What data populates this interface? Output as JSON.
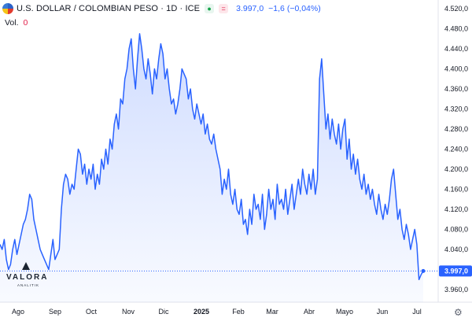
{
  "header": {
    "title": "U.S. DOLLAR / COLOMBIAN PESO · 1D · ICE",
    "last_price": "3.997,0",
    "change": "−1,6 (−0,04%)"
  },
  "volume": {
    "label": "Vol.",
    "value": "0"
  },
  "logo": {
    "name": "VALORA",
    "sub": "ANALITIK"
  },
  "price_axis": {
    "ticks": [
      "4.520,0",
      "4.480,0",
      "4.440,0",
      "4.400,0",
      "4.360,0",
      "4.320,0",
      "4.280,0",
      "4.240,0",
      "4.200,0",
      "4.160,0",
      "4.120,0",
      "4.080,0",
      "4.040,0",
      "3.960,0"
    ],
    "current_label": "3.997,0"
  },
  "time_axis": {
    "ticks": [
      "Ago",
      "Sep",
      "Oct",
      "Nov",
      "Dic",
      "2025",
      "Feb",
      "Mar",
      "Abr",
      "Mayo",
      "Jun",
      "Jul"
    ]
  },
  "colors": {
    "line": "#2962ff",
    "accent": "#2962ff",
    "down": "#e11d48",
    "up": "#16a34a"
  },
  "chart_data": {
    "type": "area",
    "title": "U.S. DOLLAR / COLOMBIAN PESO · 1D · ICE",
    "ylim": [
      3940,
      4525
    ],
    "current_value": 3997,
    "x_ticks": [
      "Ago",
      "Sep",
      "Oct",
      "Nov",
      "Dic",
      "2025",
      "Feb",
      "Mar",
      "Abr",
      "Mayo",
      "Jun",
      "Jul"
    ],
    "y_ticks": [
      4520,
      4480,
      4440,
      4400,
      4360,
      4320,
      4280,
      4240,
      4200,
      4160,
      4120,
      4080,
      4040,
      3960
    ],
    "series": [
      {
        "values": [
          4050,
          4040,
          4060,
          4020,
          4000,
          4010,
          4040,
          4060,
          4030,
          4050,
          4070,
          4090,
          4100,
          4120,
          4150,
          4140,
          4100,
          4080,
          4060,
          4040,
          4030,
          4020,
          4010,
          4000,
          4030,
          4060,
          4020,
          4030,
          4040,
          4120,
          4170,
          4190,
          4180,
          4150,
          4170,
          4160,
          4200,
          4240,
          4230,
          4190,
          4210,
          4170,
          4200,
          4180,
          4210,
          4160,
          4190,
          4170,
          4220,
          4200,
          4240,
          4210,
          4260,
          4240,
          4290,
          4310,
          4280,
          4340,
          4330,
          4380,
          4400,
          4440,
          4460,
          4400,
          4360,
          4420,
          4470,
          4440,
          4400,
          4380,
          4420,
          4390,
          4350,
          4400,
          4380,
          4420,
          4450,
          4430,
          4380,
          4400,
          4360,
          4330,
          4340,
          4310,
          4330,
          4360,
          4400,
          4390,
          4380,
          4340,
          4360,
          4320,
          4300,
          4330,
          4310,
          4290,
          4310,
          4270,
          4290,
          4260,
          4250,
          4270,
          4240,
          4220,
          4200,
          4150,
          4180,
          4160,
          4200,
          4150,
          4130,
          4160,
          4120,
          4110,
          4140,
          4090,
          4100,
          4070,
          4120,
          4090,
          4150,
          4120,
          4130,
          4100,
          4150,
          4080,
          4110,
          4160,
          4120,
          4140,
          4100,
          4170,
          4130,
          4140,
          4120,
          4160,
          4110,
          4140,
          4170,
          4120,
          4150,
          4180,
          4150,
          4200,
          4170,
          4150,
          4190,
          4160,
          4200,
          4150,
          4180,
          4380,
          4420,
          4350,
          4280,
          4310,
          4260,
          4300,
          4270,
          4250,
          4290,
          4240,
          4280,
          4300,
          4220,
          4260,
          4200,
          4230,
          4190,
          4220,
          4180,
          4160,
          4190,
          4150,
          4170,
          4140,
          4160,
          4130,
          4110,
          4150,
          4120,
          4100,
          4130,
          4110,
          4140,
          4180,
          4200,
          4150,
          4100,
          4120,
          4080,
          4060,
          4090,
          4070,
          4040,
          4060,
          4080,
          4050,
          3980,
          3990,
          3997
        ]
      }
    ]
  }
}
